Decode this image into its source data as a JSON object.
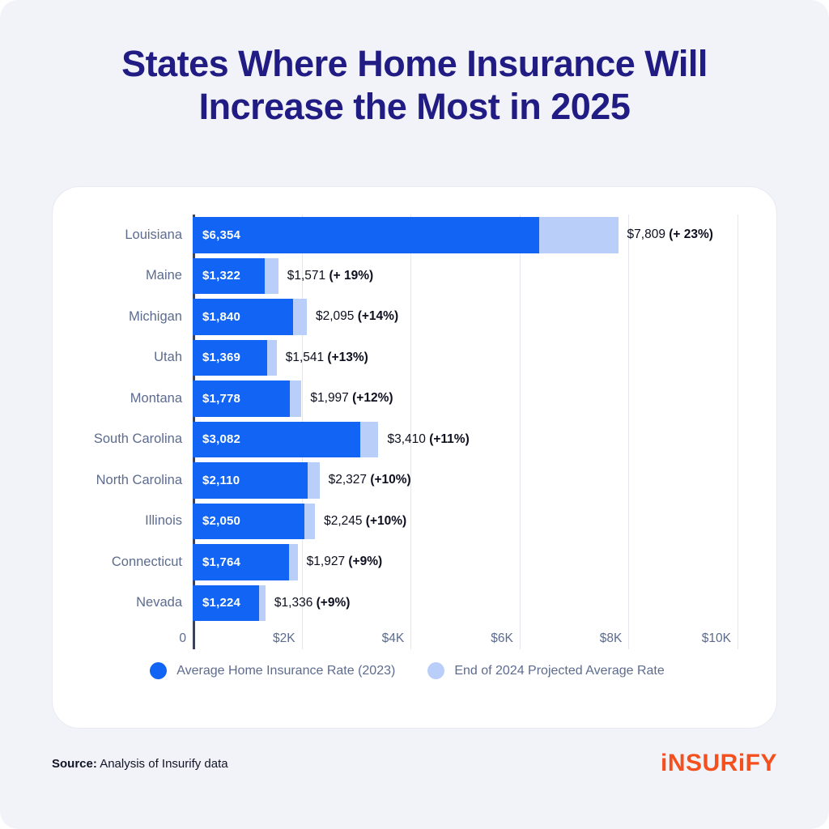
{
  "title": "States Where Home Insurance Will Increase the Most in 2025",
  "chart_data": {
    "type": "bar",
    "orientation": "horizontal",
    "title": "States Where Home Insurance Will Increase the Most in 2025",
    "xlabel": "",
    "ylabel": "",
    "xlim": [
      0,
      10000
    ],
    "grid": true,
    "legend_position": "bottom",
    "x_ticks": [
      {
        "label": "0",
        "value": 0
      },
      {
        "label": "$2K",
        "value": 2000
      },
      {
        "label": "$4K",
        "value": 4000
      },
      {
        "label": "$6K",
        "value": 6000
      },
      {
        "label": "$8K",
        "value": 8000
      },
      {
        "label": "$10K",
        "value": 10000
      }
    ],
    "series": [
      {
        "name": "Average Home Insurance Rate (2023)",
        "color": "#1164F4"
      },
      {
        "name": "End of 2024 Projected Average Rate",
        "color": "#B9CEF8"
      }
    ],
    "rows": [
      {
        "state": "Louisiana",
        "rate_2023": 6354,
        "rate_2023_label": "$6,354",
        "projected_2024": 7809,
        "projected_label": "$7,809",
        "pct_label": "(+ 23%)"
      },
      {
        "state": "Maine",
        "rate_2023": 1322,
        "rate_2023_label": "$1,322",
        "projected_2024": 1571,
        "projected_label": "$1,571",
        "pct_label": "(+ 19%)"
      },
      {
        "state": "Michigan",
        "rate_2023": 1840,
        "rate_2023_label": "$1,840",
        "projected_2024": 2095,
        "projected_label": "$2,095",
        "pct_label": "(+14%)"
      },
      {
        "state": "Utah",
        "rate_2023": 1369,
        "rate_2023_label": "$1,369",
        "projected_2024": 1541,
        "projected_label": "$1,541",
        "pct_label": "(+13%)"
      },
      {
        "state": "Montana",
        "rate_2023": 1778,
        "rate_2023_label": "$1,778",
        "projected_2024": 1997,
        "projected_label": "$1,997",
        "pct_label": "(+12%)"
      },
      {
        "state": "South Carolina",
        "rate_2023": 3082,
        "rate_2023_label": "$3,082",
        "projected_2024": 3410,
        "projected_label": "$3,410",
        "pct_label": "(+11%)"
      },
      {
        "state": "North Carolina",
        "rate_2023": 2110,
        "rate_2023_label": "$2,110",
        "projected_2024": 2327,
        "projected_label": "$2,327",
        "pct_label": "(+10%)"
      },
      {
        "state": "Illinois",
        "rate_2023": 2050,
        "rate_2023_label": "$2,050",
        "projected_2024": 2245,
        "projected_label": "$2,245",
        "pct_label": "(+10%)"
      },
      {
        "state": "Connecticut",
        "rate_2023": 1764,
        "rate_2023_label": "$1,764",
        "projected_2024": 1927,
        "projected_label": "$1,927",
        "pct_label": "(+9%)"
      },
      {
        "state": "Nevada",
        "rate_2023": 1224,
        "rate_2023_label": "$1,224",
        "projected_2024": 1336,
        "projected_label": "$1,336",
        "pct_label": "(+9%)"
      }
    ]
  },
  "legend": {
    "items": [
      {
        "label": "Average Home Insurance Rate (2023)",
        "color": "#1164F4"
      },
      {
        "label": "End of 2024 Projected Average Rate",
        "color": "#B9CEF8"
      }
    ]
  },
  "footer": {
    "source_label": "Source:",
    "source_text": " Analysis of Insurify data",
    "logo_text": "iNSURiFY"
  },
  "colors": {
    "background": "#F2F3F8",
    "card": "#FFFFFF",
    "title": "#211C84",
    "bar_dark": "#1164F4",
    "bar_light": "#B9CEF8",
    "axis_line": "#39435E",
    "gridline": "#E4E7EF",
    "label_text": "#5C6B8E",
    "value_text": "#0D0F1F",
    "logo": "#F4501F"
  }
}
